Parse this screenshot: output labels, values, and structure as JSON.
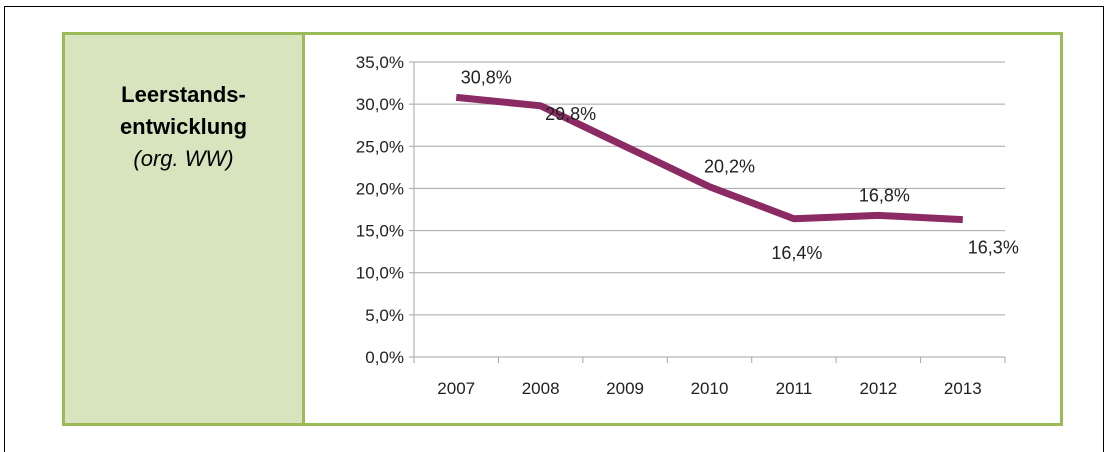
{
  "panel": {
    "title_line1": "Leerstands-",
    "title_line2": "entwicklung",
    "subtitle": "(org. WW)"
  },
  "colors": {
    "line": "#8b2a63",
    "panel_border": "#9bbb59",
    "label_fill": "#d7e4bd",
    "grid": "#a6a6a6"
  },
  "chart_data": {
    "type": "line",
    "categories": [
      "2007",
      "2008",
      "2009",
      "2010",
      "2011",
      "2012",
      "2013"
    ],
    "series": [
      {
        "values": [
          30.8,
          29.8,
          25.0,
          20.2,
          16.4,
          16.8,
          16.3
        ]
      }
    ],
    "data_labels": [
      {
        "category": "2007",
        "text": "30,8%"
      },
      {
        "category": "2008",
        "text": "29,8%"
      },
      {
        "category": "2010",
        "text": "20,2%"
      },
      {
        "category": "2011",
        "text": "16,4%"
      },
      {
        "category": "2012",
        "text": "16,8%"
      },
      {
        "category": "2013",
        "text": "16,3%"
      }
    ],
    "y_ticks": [
      "0,0%",
      "5,0%",
      "10,0%",
      "15,0%",
      "20,0%",
      "25,0%",
      "30,0%",
      "35,0%"
    ],
    "ylim": [
      0,
      35
    ],
    "y_step": 5,
    "grid": true,
    "legend": "none"
  }
}
